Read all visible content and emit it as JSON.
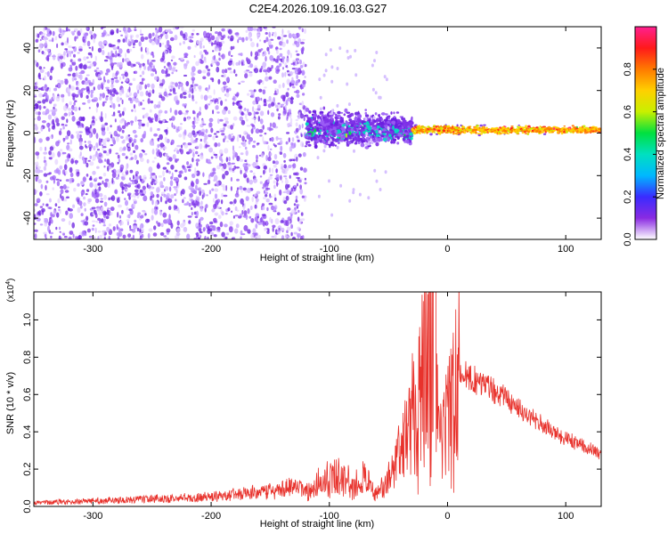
{
  "title": "C2E4.2026.109.16.03.G27",
  "colors": {
    "snr_line": "#e8322c",
    "colorbar": [
      "#ffffff",
      "#8a2be2",
      "#3a2bff",
      "#00b8ff",
      "#00e0c0",
      "#00e040",
      "#c8f000",
      "#ffd000",
      "#ff7a00",
      "#ff1a1a",
      "#ff2090"
    ]
  },
  "chart_data": [
    {
      "type": "heatmap",
      "xlabel": "Height of straight line (km)",
      "ylabel": "Frequency (Hz)",
      "xlim": [
        -350,
        130
      ],
      "ylim": [
        -50,
        50
      ],
      "xticks": [
        -300,
        -200,
        -100,
        0,
        100
      ],
      "xtick_labels": [
        "-300",
        "-200",
        "-100",
        "0",
        "100"
      ],
      "yticks": [
        -40,
        -20,
        0,
        20,
        40
      ],
      "ytick_labels": [
        "-40",
        "-20",
        "0",
        "20",
        "40"
      ],
      "colorbar": {
        "label": "Normalized spectral amplitude",
        "range": [
          0,
          1
        ],
        "ticks": [
          0.0,
          0.2,
          0.4,
          0.6,
          0.8
        ],
        "tick_labels": [
          "0.0",
          "0.2",
          "0.4",
          "0.6",
          "0.8"
        ]
      },
      "regions": [
        {
          "x_range": [
            -350,
            -120
          ],
          "freq_spread": 50,
          "amplitude": 0.15,
          "note_visible": false
        },
        {
          "x_range": [
            -120,
            -30
          ],
          "freq_spread": 12,
          "amplitude": 0.3
        },
        {
          "x_range": [
            -30,
            130
          ],
          "freq_spread": 3,
          "amplitude": 0.75
        }
      ]
    },
    {
      "type": "line",
      "xlabel": "Height of straight line (km)",
      "ylabel": "SNR (10 * v/v)",
      "y_multiplier_label": "(x10",
      "y_multiplier_exp": "4",
      "y_multiplier_close": ")",
      "xlim": [
        -350,
        130
      ],
      "ylim": [
        0,
        1.15
      ],
      "xticks": [
        -300,
        -200,
        -100,
        0,
        100
      ],
      "xtick_labels": [
        "-300",
        "-200",
        "-100",
        "0",
        "100"
      ],
      "yticks": [
        0.0,
        0.2,
        0.4,
        0.6,
        0.8,
        1.0
      ],
      "ytick_labels": [
        "0.0",
        "0.2",
        "0.4",
        "0.6",
        "0.8",
        "1.0"
      ],
      "series": [
        {
          "x": [
            -350,
            -300,
            -250,
            -200,
            -170,
            -150,
            -130,
            -115,
            -105,
            -100,
            -90,
            -80,
            -70,
            -60,
            -50,
            -40,
            -30,
            -20,
            -12,
            -8,
            -2,
            5,
            10,
            20,
            30,
            40,
            50,
            60,
            70,
            80,
            90,
            100,
            110,
            120,
            130
          ],
          "y": [
            0.02,
            0.03,
            0.04,
            0.05,
            0.07,
            0.08,
            0.1,
            0.08,
            0.16,
            0.14,
            0.18,
            0.1,
            0.16,
            0.06,
            0.14,
            0.3,
            0.45,
            0.7,
            0.85,
            0.35,
            0.45,
            0.55,
            0.72,
            0.68,
            0.66,
            0.62,
            0.58,
            0.52,
            0.48,
            0.44,
            0.4,
            0.36,
            0.34,
            0.31,
            0.28
          ]
        }
      ]
    }
  ]
}
